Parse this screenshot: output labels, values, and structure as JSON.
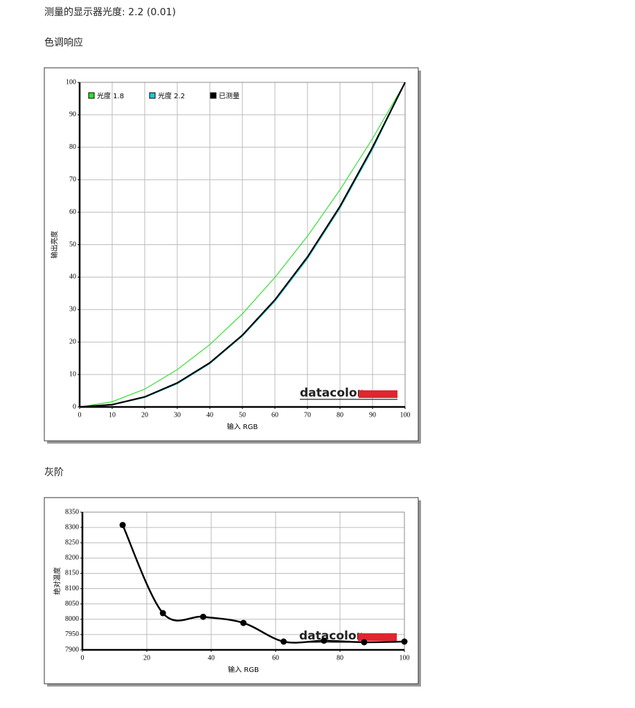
{
  "summary": "测量的显示器光度: 2.2 (0.01)",
  "chart_data": [
    {
      "type": "line",
      "title": "色调响应",
      "x_label": "输入 RGB",
      "y_label": "输出亮度",
      "logo": "datacolor",
      "x": [
        0,
        10,
        20,
        30,
        40,
        50,
        60,
        70,
        80,
        90,
        100
      ],
      "series": [
        {
          "name": "光度 1.8",
          "color": "#33dd33",
          "values": [
            0,
            1.6,
            5.5,
            11.5,
            19.2,
            28.7,
            39.9,
            52.6,
            66.9,
            82.7,
            100
          ]
        },
        {
          "name": "光度 2.2",
          "color": "#22c8d0",
          "values": [
            0,
            0.6,
            2.9,
            7.1,
            13.3,
            21.8,
            32.5,
            45.6,
            61.2,
            79.3,
            100
          ]
        },
        {
          "name": "已测量",
          "color": "#000000",
          "values": [
            0,
            0.7,
            3.1,
            7.4,
            13.6,
            22.1,
            33,
            46.2,
            61.8,
            80,
            100
          ]
        }
      ],
      "xlim": [
        0,
        100
      ],
      "xticks": [
        0,
        10,
        20,
        30,
        40,
        50,
        60,
        70,
        80,
        90,
        100
      ],
      "ylim": [
        0,
        100
      ],
      "yticks": [
        0,
        10,
        20,
        30,
        40,
        50,
        60,
        70,
        80,
        90,
        100
      ],
      "grid": true,
      "legend": "upper left"
    },
    {
      "type": "line",
      "title": "灰阶",
      "x_label": "输入 RGB",
      "y_label": "绝对温度",
      "logo": "datacolor",
      "x": [
        12.5,
        25,
        37.5,
        50,
        62.5,
        75,
        87.5,
        100
      ],
      "values": [
        8308,
        8020,
        8008,
        7988,
        7927,
        7930,
        7925,
        7927
      ],
      "color": "#000000",
      "markers": true,
      "smooth": true,
      "xlim": [
        0,
        100
      ],
      "xticks": [
        0,
        20,
        40,
        60,
        80,
        100
      ],
      "ylim": [
        7900,
        8350
      ],
      "yticks": [
        7900,
        7950,
        8000,
        8050,
        8100,
        8150,
        8200,
        8250,
        8300,
        8350
      ],
      "grid": true
    }
  ]
}
